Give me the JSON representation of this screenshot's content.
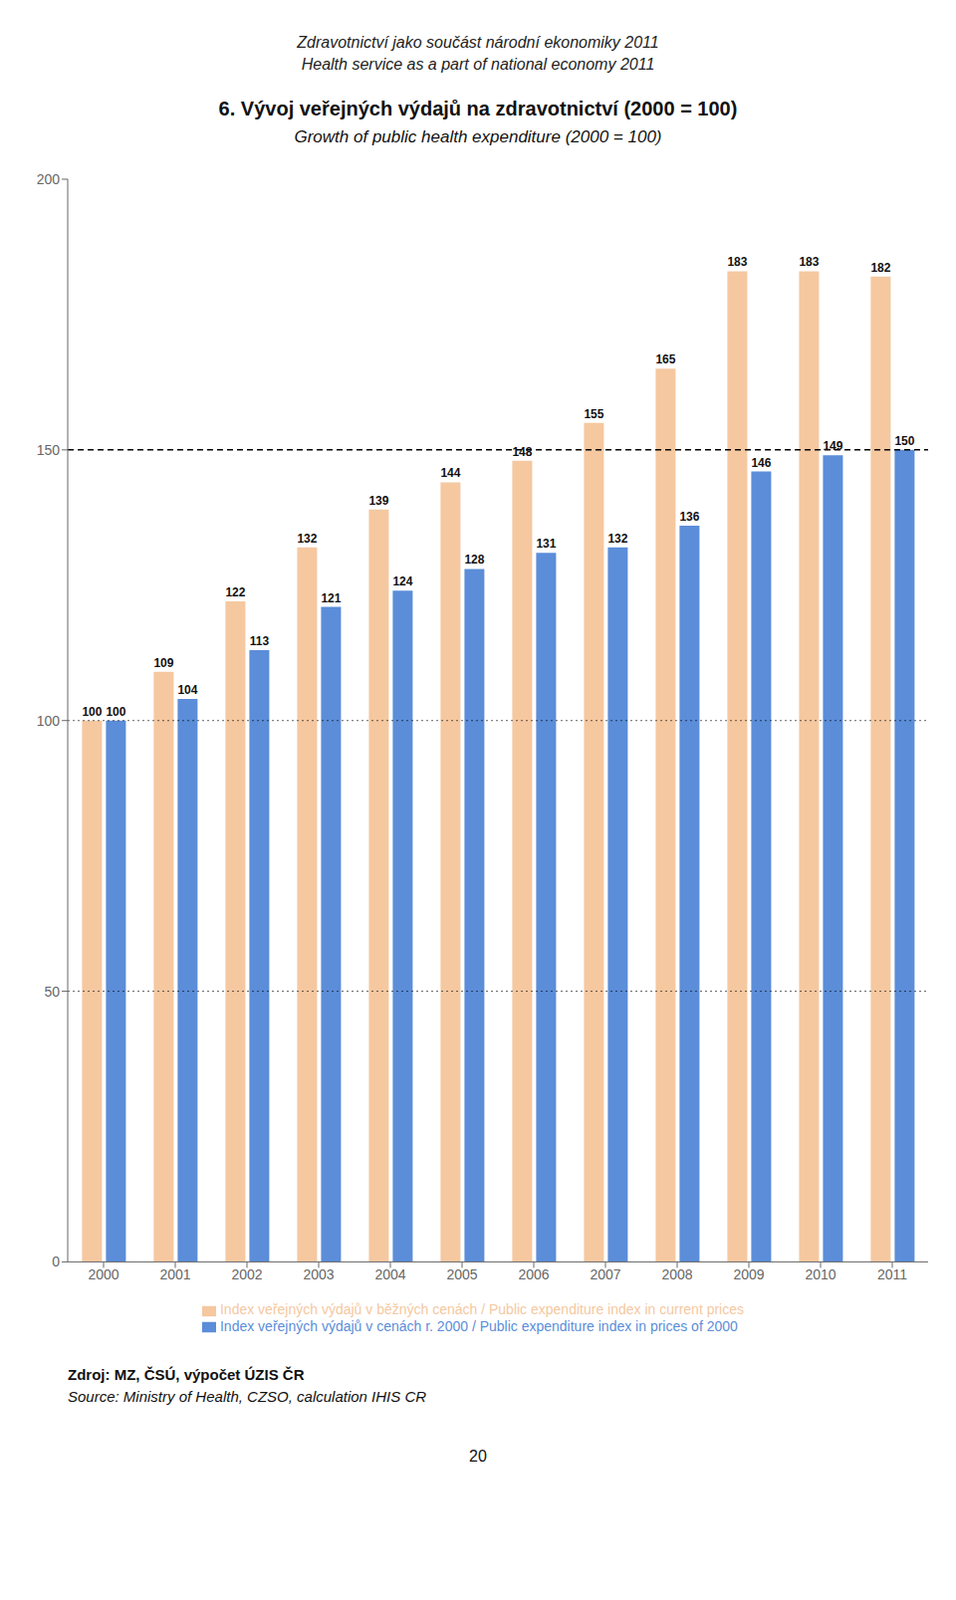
{
  "chart_data": {
    "type": "bar",
    "header": [
      "Zdravotnictví jako součást národní ekonomiky 2011",
      "Health service as a part of national economy 2011"
    ],
    "title": "6. Vývoj veřejných výdajů na zdravotnictví (2000 = 100)",
    "subtitle": "Growth of public health expenditure (2000 = 100)",
    "categories": [
      "2000",
      "2001",
      "2002",
      "2003",
      "2004",
      "2005",
      "2006",
      "2007",
      "2008",
      "2009",
      "2010",
      "2011"
    ],
    "series": [
      {
        "name": "Index veřejných výdajů v běžných cenách / Public expenditure index in current prices",
        "color": "#F5C8A0",
        "values": [
          100,
          109,
          122,
          132,
          139,
          144,
          148,
          155,
          165,
          183,
          183,
          182
        ]
      },
      {
        "name": "Index veřejných výdajů v cenách r. 2000 / Public expenditure index in prices of 2000",
        "color": "#5B8DD9",
        "values": [
          100,
          104,
          113,
          121,
          124,
          128,
          131,
          132,
          136,
          146,
          149,
          150
        ]
      }
    ],
    "ylim": [
      0,
      200
    ],
    "yticks": [
      0,
      50,
      100,
      150,
      200
    ],
    "reference_lines": [
      {
        "value": 150,
        "line_style": "dashed"
      },
      {
        "value": 50,
        "line_style": "dotted"
      },
      {
        "value": 100,
        "line_style": "dotted"
      }
    ],
    "data_labels": true,
    "grid": false,
    "legend": "bottom",
    "source": [
      "Zdroj: MZ, ČSÚ, výpočet ÚZIS ČR",
      "Source: Ministry of Health, CZSO, calculation IHIS CR"
    ],
    "page_number": "20"
  }
}
